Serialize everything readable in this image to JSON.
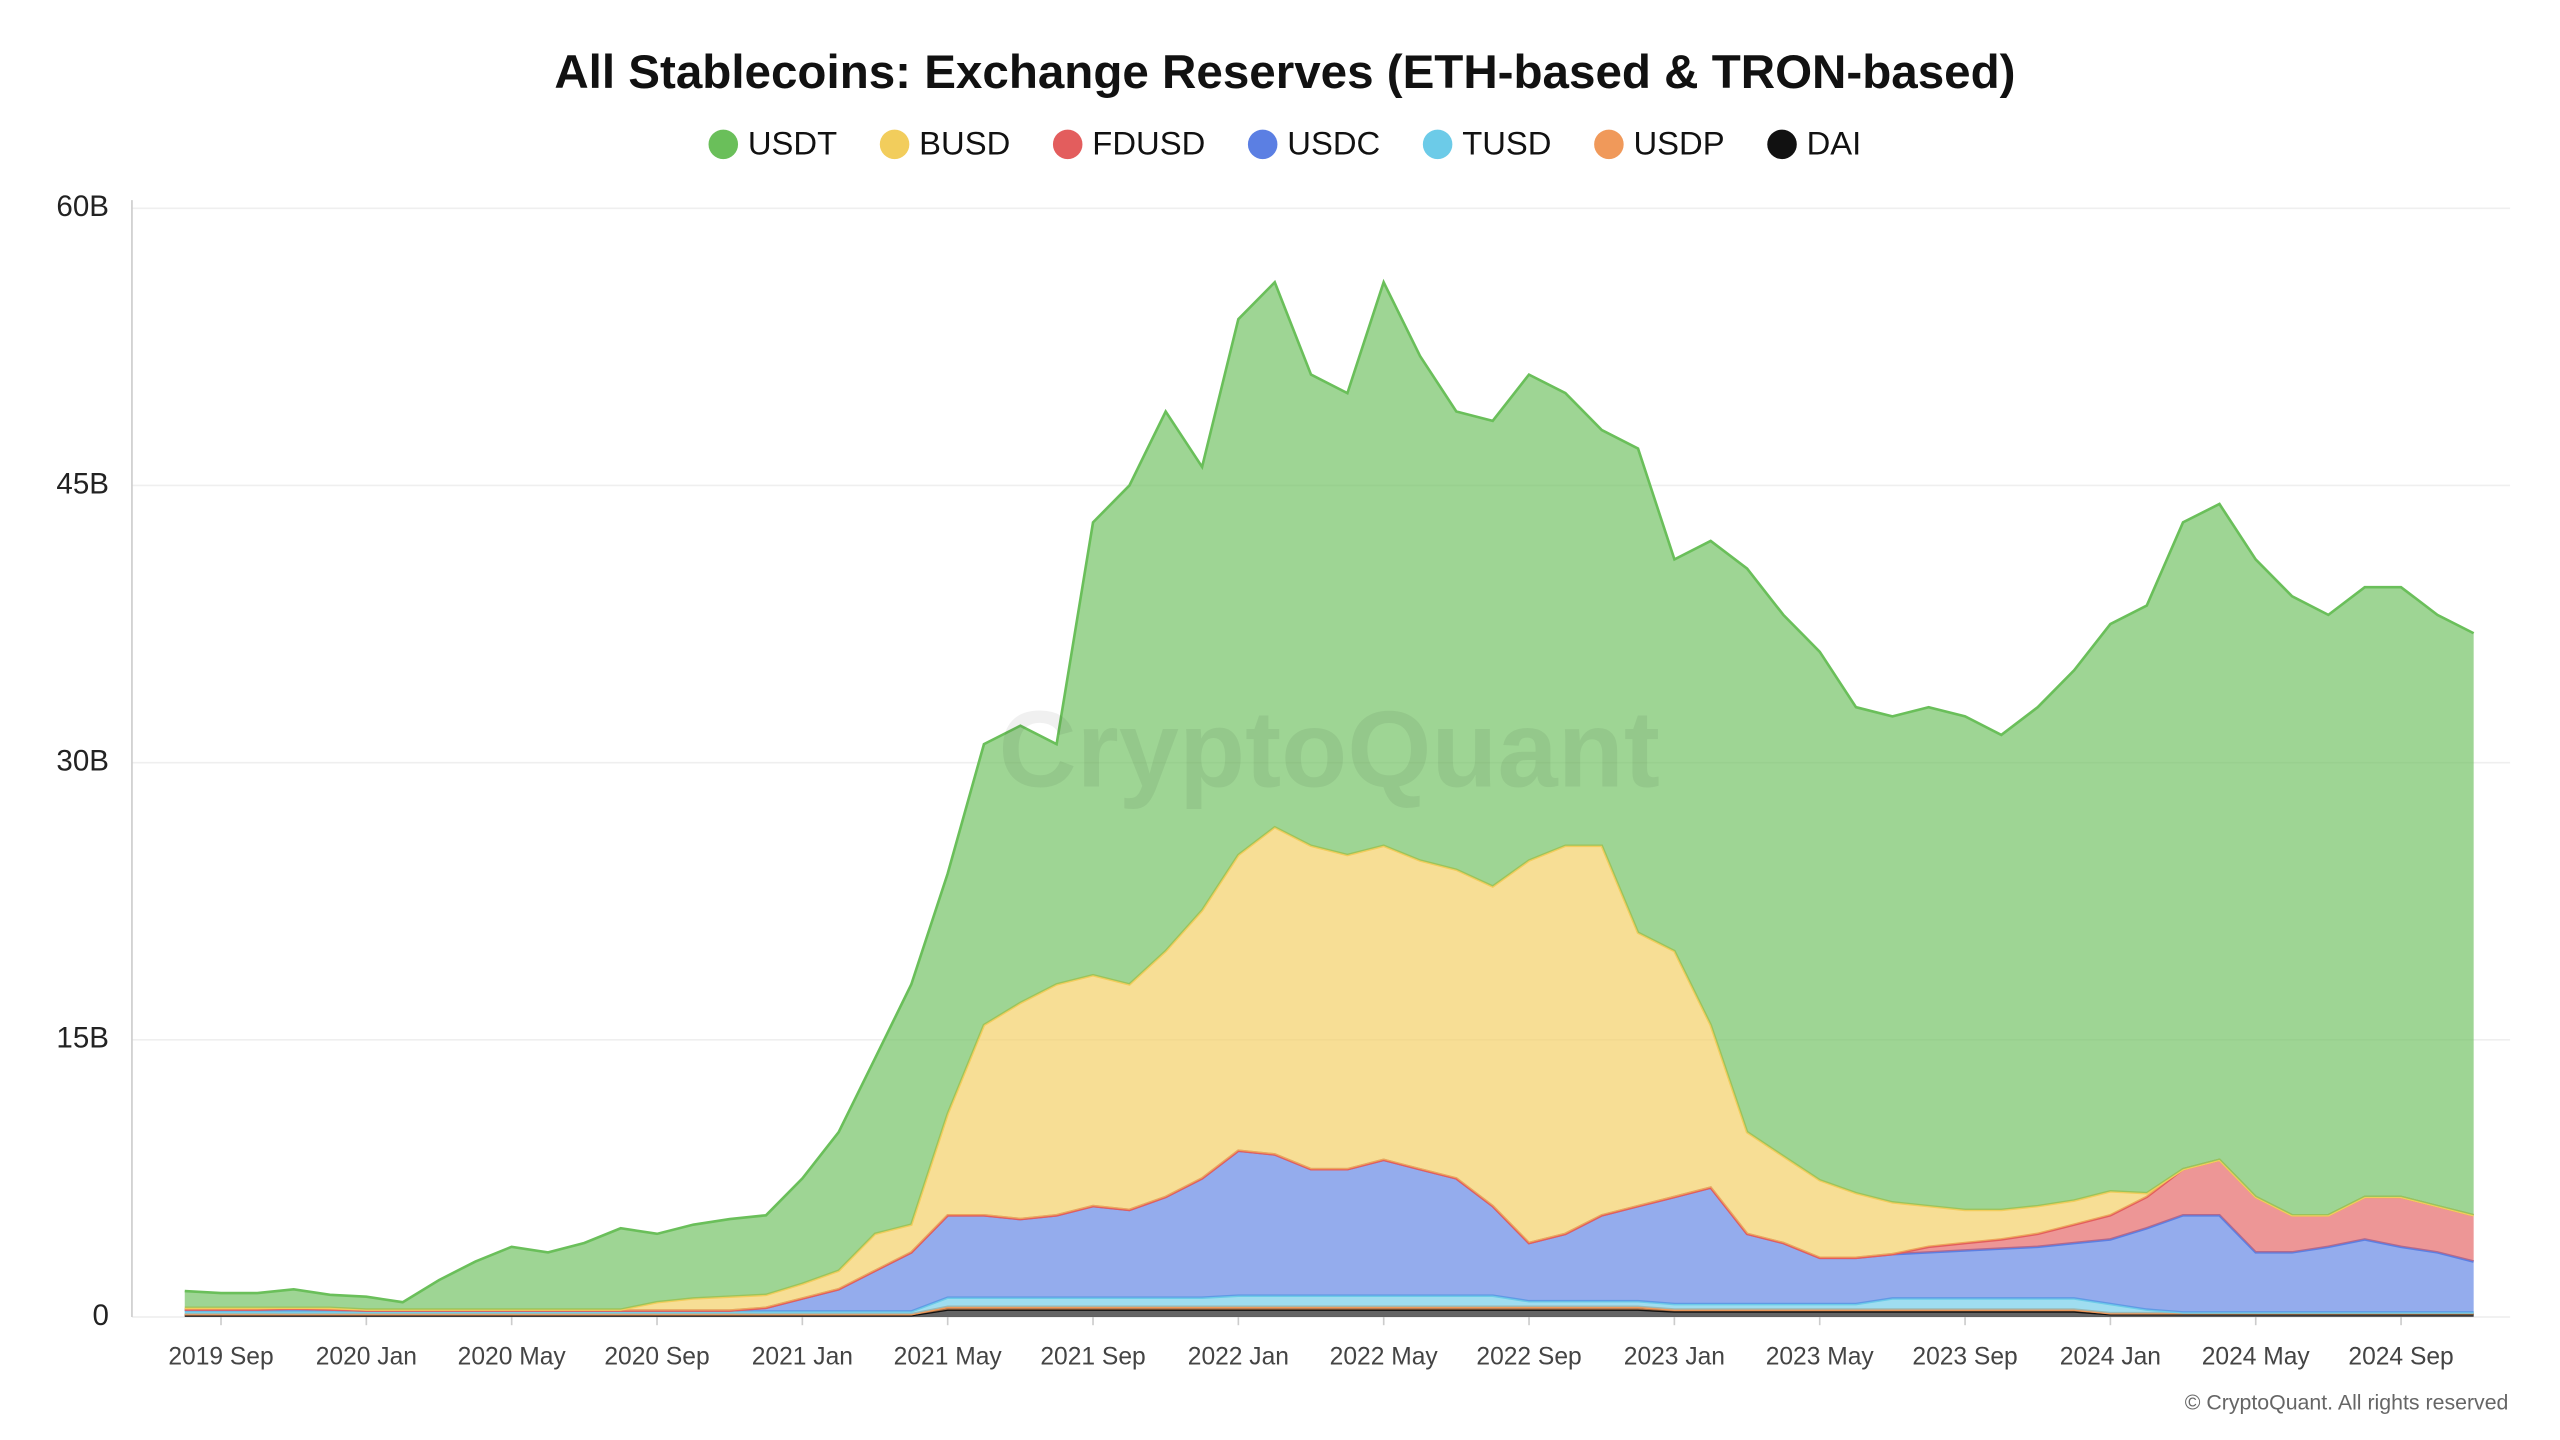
{
  "chart_data": {
    "type": "stacked_area",
    "title": "All Stablecoins: Exchange Reserves (ETH-based & TRON-based)",
    "watermark": "CryptoQuant",
    "footer": "© CryptoQuant. All rights reserved",
    "x": [
      "2019-08",
      "2019-09",
      "2019-10",
      "2019-11",
      "2019-12",
      "2020-01",
      "2020-02",
      "2020-03",
      "2020-04",
      "2020-05",
      "2020-06",
      "2020-07",
      "2020-08",
      "2020-09",
      "2020-10",
      "2020-11",
      "2020-12",
      "2021-01",
      "2021-02",
      "2021-03",
      "2021-04",
      "2021-05",
      "2021-06",
      "2021-07",
      "2021-08",
      "2021-09",
      "2021-10",
      "2021-11",
      "2021-12",
      "2022-01",
      "2022-02",
      "2022-03",
      "2022-04",
      "2022-05",
      "2022-06",
      "2022-07",
      "2022-08",
      "2022-09",
      "2022-10",
      "2022-11",
      "2022-12",
      "2023-01",
      "2023-02",
      "2023-03",
      "2023-04",
      "2023-05",
      "2023-06",
      "2023-07",
      "2023-08",
      "2023-09",
      "2023-10",
      "2023-11",
      "2023-12",
      "2024-01",
      "2024-02",
      "2024-03",
      "2024-04",
      "2024-05",
      "2024-06",
      "2024-07",
      "2024-08",
      "2024-09",
      "2024-10",
      "2024-11"
    ],
    "series": [
      {
        "name": "USDT",
        "color": "#6abf5a",
        "values": [
          0.9,
          0.8,
          0.8,
          1.0,
          0.7,
          0.7,
          0.4,
          1.6,
          2.6,
          3.4,
          3.1,
          3.6,
          4.4,
          3.7,
          4.0,
          4.2,
          4.3,
          5.7,
          7.5,
          9.5,
          13,
          13,
          15.2,
          15,
          13,
          24.5,
          27,
          29.2,
          24,
          29,
          29.5,
          25.5,
          25,
          30.5,
          27.3,
          24.8,
          25.2,
          26.3,
          24.5,
          22.5,
          26.2,
          21.2,
          26.2,
          30.5,
          29.3,
          28.6,
          26.3,
          26.3,
          27,
          26.7,
          25.7,
          27,
          28.7,
          30.7,
          31.8,
          35,
          35.5,
          34.5,
          33.5,
          32.5,
          33,
          33,
          32,
          31.5
        ]
      },
      {
        "name": "BUSD",
        "color": "#f2cd5c",
        "values": [
          0.1,
          0.1,
          0.1,
          0.05,
          0.1,
          0.05,
          0.05,
          0.05,
          0.05,
          0.05,
          0.05,
          0.05,
          0.05,
          0.45,
          0.65,
          0.75,
          0.7,
          0.8,
          1.0,
          2.0,
          1.5,
          5.5,
          10.3,
          11.7,
          12.5,
          12.5,
          12.2,
          13.3,
          14.5,
          16,
          17.7,
          17.5,
          17,
          17,
          16.7,
          16.7,
          17.3,
          20.7,
          21,
          20,
          14.8,
          13.3,
          8.8,
          5.5,
          4.7,
          4.2,
          3.5,
          2.8,
          2.2,
          1.8,
          1.6,
          1.5,
          1.3,
          1.3,
          0.2,
          0,
          0,
          0,
          0,
          0,
          0,
          0,
          0,
          0
        ]
      },
      {
        "name": "FDUSD",
        "color": "#e35d5d",
        "values": [
          0,
          0,
          0,
          0,
          0,
          0,
          0,
          0,
          0,
          0,
          0,
          0,
          0,
          0,
          0,
          0,
          0,
          0,
          0,
          0,
          0,
          0,
          0,
          0,
          0,
          0,
          0,
          0,
          0,
          0,
          0,
          0,
          0,
          0,
          0,
          0,
          0,
          0,
          0,
          0,
          0,
          0,
          0,
          0,
          0,
          0,
          0,
          0,
          0.3,
          0.4,
          0.5,
          0.7,
          1.0,
          1.3,
          1.7,
          2.5,
          3.0,
          3.0,
          2.0,
          1.7,
          2.3,
          2.7,
          2.5,
          2.5
        ]
      },
      {
        "name": "USDC",
        "color": "#5b7fe3",
        "values": [
          0.1,
          0.1,
          0.1,
          0.15,
          0.1,
          0.05,
          0.05,
          0.05,
          0.05,
          0.05,
          0.05,
          0.05,
          0.05,
          0.05,
          0.05,
          0.05,
          0.2,
          0.7,
          1.2,
          2.2,
          3.2,
          4.45,
          4.45,
          4.25,
          4.45,
          4.95,
          4.75,
          5.45,
          6.45,
          7.85,
          7.65,
          6.85,
          6.85,
          7.35,
          6.85,
          6.35,
          4.85,
          3.15,
          3.65,
          4.65,
          5.15,
          5.8,
          6.3,
          3.8,
          3.3,
          2.5,
          2.5,
          2.4,
          2.5,
          2.6,
          2.7,
          2.8,
          3,
          3.5,
          4.4,
          5.25,
          5.25,
          3.25,
          3.25,
          3.55,
          3.95,
          3.55,
          3.25,
          2.75
        ]
      },
      {
        "name": "TUSD",
        "color": "#6ccbe8",
        "values": [
          0.15,
          0.15,
          0.15,
          0.15,
          0.15,
          0.15,
          0.15,
          0.15,
          0.15,
          0.15,
          0.15,
          0.15,
          0.15,
          0.15,
          0.15,
          0.15,
          0.15,
          0.15,
          0.15,
          0.15,
          0.15,
          0.5,
          0.5,
          0.5,
          0.5,
          0.5,
          0.5,
          0.5,
          0.5,
          0.6,
          0.6,
          0.6,
          0.6,
          0.6,
          0.6,
          0.6,
          0.6,
          0.3,
          0.3,
          0.3,
          0.3,
          0.3,
          0.3,
          0.3,
          0.3,
          0.3,
          0.3,
          0.6,
          0.6,
          0.6,
          0.6,
          0.6,
          0.6,
          0.5,
          0.2,
          0.05,
          0.05,
          0.05,
          0.05,
          0.05,
          0.05,
          0.05,
          0.05,
          0.05
        ]
      },
      {
        "name": "USDP",
        "color": "#f0995a",
        "values": [
          0.05,
          0.05,
          0.05,
          0.05,
          0.05,
          0.05,
          0.05,
          0.05,
          0.05,
          0.05,
          0.05,
          0.05,
          0.05,
          0.05,
          0.05,
          0.05,
          0.05,
          0.05,
          0.05,
          0.05,
          0.05,
          0.15,
          0.15,
          0.15,
          0.15,
          0.15,
          0.15,
          0.15,
          0.15,
          0.15,
          0.15,
          0.15,
          0.15,
          0.15,
          0.15,
          0.15,
          0.15,
          0.15,
          0.15,
          0.15,
          0.15,
          0.1,
          0.1,
          0.1,
          0.1,
          0.1,
          0.1,
          0.1,
          0.1,
          0.1,
          0.1,
          0.1,
          0.1,
          0.05,
          0.05,
          0.05,
          0.05,
          0.05,
          0.05,
          0.05,
          0.05,
          0.05,
          0.05,
          0.05
        ]
      },
      {
        "name": "DAI",
        "color": "#111111",
        "values": [
          0.1,
          0.1,
          0.1,
          0.1,
          0.1,
          0.1,
          0.1,
          0.1,
          0.1,
          0.1,
          0.1,
          0.1,
          0.1,
          0.1,
          0.1,
          0.1,
          0.1,
          0.1,
          0.1,
          0.1,
          0.1,
          0.4,
          0.4,
          0.4,
          0.4,
          0.4,
          0.4,
          0.4,
          0.4,
          0.4,
          0.4,
          0.4,
          0.4,
          0.4,
          0.4,
          0.4,
          0.4,
          0.4,
          0.4,
          0.4,
          0.4,
          0.3,
          0.3,
          0.3,
          0.3,
          0.3,
          0.3,
          0.3,
          0.3,
          0.3,
          0.3,
          0.3,
          0.3,
          0.15,
          0.15,
          0.15,
          0.15,
          0.15,
          0.15,
          0.15,
          0.15,
          0.15,
          0.15,
          0.15
        ]
      }
    ],
    "xlim": [
      "2019-07",
      "2024-12"
    ],
    "xticks": [
      {
        "value": "2019-09",
        "label": "2019 Sep"
      },
      {
        "value": "2020-01",
        "label": "2020 Jan"
      },
      {
        "value": "2020-05",
        "label": "2020 May"
      },
      {
        "value": "2020-09",
        "label": "2020 Sep"
      },
      {
        "value": "2021-01",
        "label": "2021 Jan"
      },
      {
        "value": "2021-05",
        "label": "2021 May"
      },
      {
        "value": "2021-09",
        "label": "2021 Sep"
      },
      {
        "value": "2022-01",
        "label": "2022 Jan"
      },
      {
        "value": "2022-05",
        "label": "2022 May"
      },
      {
        "value": "2022-09",
        "label": "2022 Sep"
      },
      {
        "value": "2023-01",
        "label": "2023 Jan"
      },
      {
        "value": "2023-05",
        "label": "2023 May"
      },
      {
        "value": "2023-09",
        "label": "2023 Sep"
      },
      {
        "value": "2024-01",
        "label": "2024 Jan"
      },
      {
        "value": "2024-05",
        "label": "2024 May"
      },
      {
        "value": "2024-09",
        "label": "2024 Sep"
      }
    ],
    "ylim": [
      0,
      60
    ],
    "yticks": [
      0,
      {
        "value": 15,
        "label": "15B"
      },
      {
        "value": 30,
        "label": "30B"
      },
      {
        "value": 45,
        "label": "45B"
      },
      {
        "value": 60,
        "label": "60B"
      }
    ],
    "grid": true,
    "legend": "top"
  }
}
